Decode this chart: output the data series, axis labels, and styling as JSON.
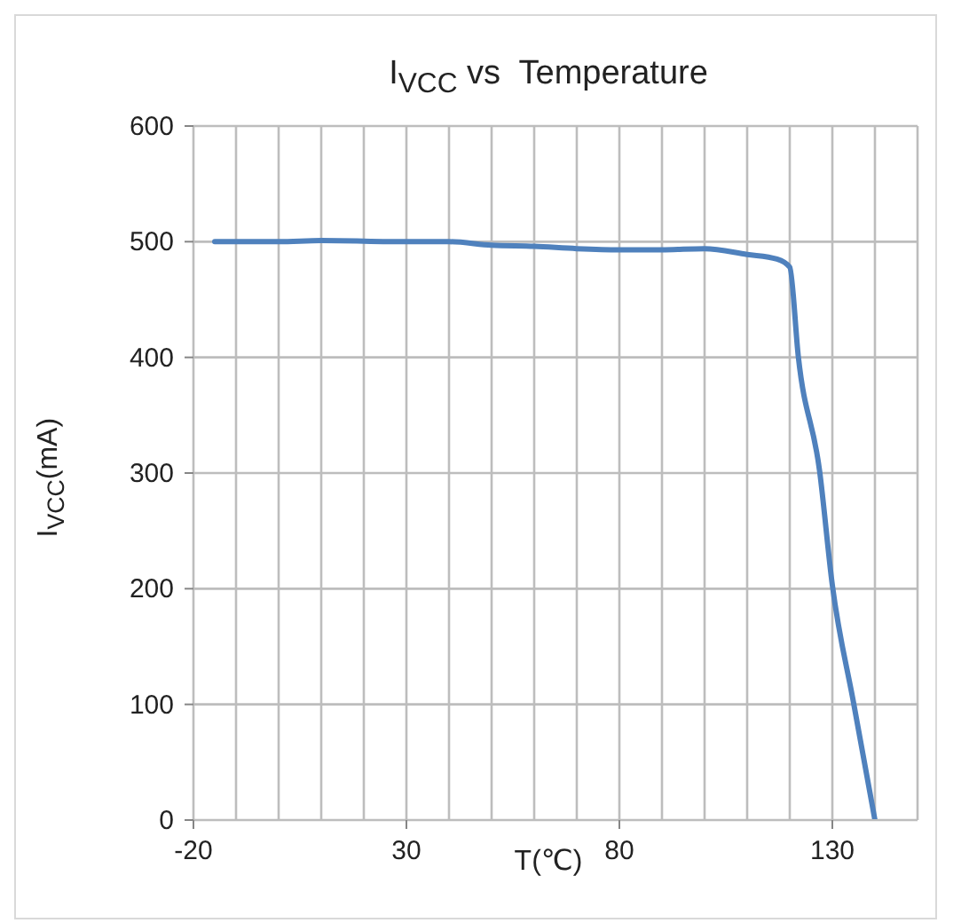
{
  "chart_data": {
    "type": "line",
    "title": "I$_{VCC}$ vs  Temperature",
    "xlabel": "T(℃)",
    "ylabel": "I$_{VCC}$(mA)",
    "x": [
      -15,
      0,
      10,
      30,
      40,
      50,
      60,
      70,
      80,
      90,
      100,
      110,
      117,
      120,
      122,
      127,
      130,
      135,
      140
    ],
    "series": [
      {
        "color": "#4f81bd",
        "values": [
          500,
          500,
          501,
          500,
          500,
          497,
          496,
          494,
          493,
          493,
          494,
          489,
          485,
          478,
          401,
          302,
          203,
          101,
          0
        ]
      }
    ],
    "xlim": [
      -20,
      150
    ],
    "xticks": [
      -20,
      {
        "value": -10,
        "label": null
      },
      {
        "value": 0,
        "label": null
      },
      {
        "value": 10,
        "label": null
      },
      {
        "value": 20,
        "label": null
      },
      30,
      {
        "value": 40,
        "label": null
      },
      {
        "value": 50,
        "label": null
      },
      {
        "value": 60,
        "label": null
      },
      {
        "value": 70,
        "label": null
      },
      80,
      {
        "value": 90,
        "label": null
      },
      {
        "value": 100,
        "label": null
      },
      {
        "value": 110,
        "label": null
      },
      {
        "value": 120,
        "label": null
      },
      130,
      {
        "value": 140,
        "label": null
      },
      {
        "value": 150,
        "label": null
      }
    ],
    "ylim": [
      0,
      600
    ],
    "yticks": [
      0,
      100,
      200,
      300,
      400,
      500,
      600
    ],
    "grid": true,
    "legend": false,
    "marker": "none",
    "line_style": "solid"
  }
}
